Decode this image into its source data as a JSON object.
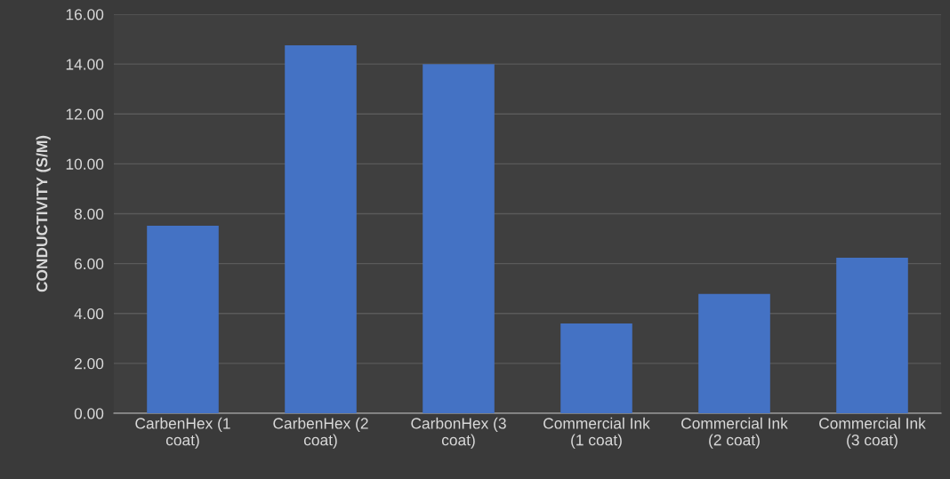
{
  "chart_data": {
    "type": "bar",
    "ylabel": "CONDUCTIVITY (S/M)",
    "categories": [
      "CarbenHex (1 coat)",
      "CarbenHex (2 coat)",
      "CarbonHex (3 coat)",
      "Commercial Ink (1 coat)",
      "Commercial Ink (2 coat)",
      "Commercial Ink (3 coat)"
    ],
    "values": [
      7.52,
      14.75,
      14.0,
      3.6,
      4.78,
      6.24
    ],
    "color": "#4472c4",
    "ylim": [
      0,
      16
    ],
    "yticks": [
      {
        "value": 0,
        "label": "0.00"
      },
      {
        "value": 2,
        "label": "2.00"
      },
      {
        "value": 4,
        "label": "4.00"
      },
      {
        "value": 6,
        "label": "6.00"
      },
      {
        "value": 8,
        "label": "8.00"
      },
      {
        "value": 10,
        "label": "10.00"
      },
      {
        "value": 12,
        "label": "12.00"
      },
      {
        "value": 14,
        "label": "14.00"
      },
      {
        "value": 16,
        "label": "16.00"
      }
    ],
    "grid": "y"
  }
}
